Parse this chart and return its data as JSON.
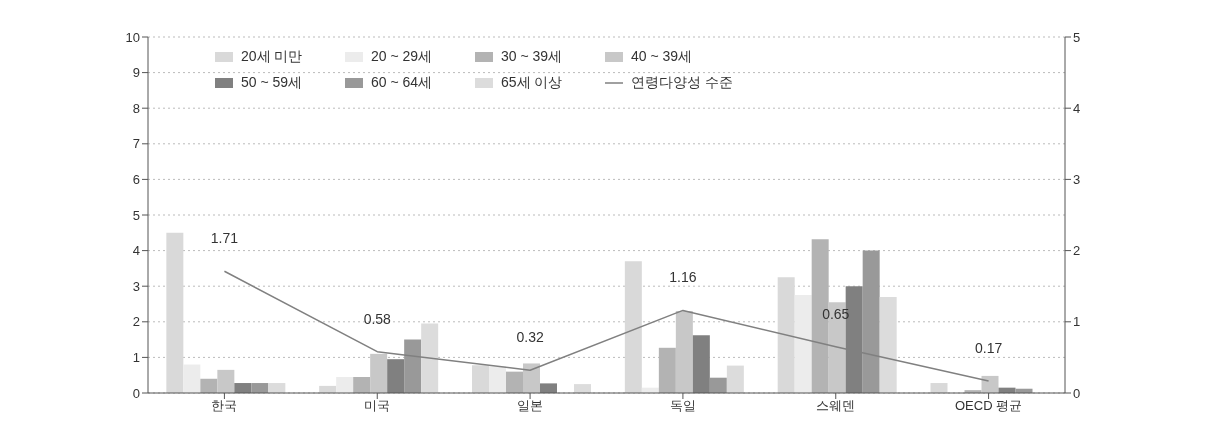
{
  "chart_data": {
    "type": "bar",
    "categories": [
      "한국",
      "미국",
      "일본",
      "독일",
      "스웨덴",
      "OECD 평균"
    ],
    "series": [
      {
        "name": "20세 미만",
        "color": "#d9d9d9",
        "values": [
          4.5,
          0.2,
          0.78,
          3.7,
          3.25,
          0.28
        ]
      },
      {
        "name": "20 ~ 29세",
        "color": "#ececec",
        "values": [
          0.8,
          0.45,
          0.75,
          0.15,
          2.75,
          null
        ]
      },
      {
        "name": "30 ~ 39세",
        "color": "#b3b3b3",
        "values": [
          0.4,
          0.45,
          0.6,
          1.27,
          4.32,
          0.08
        ]
      },
      {
        "name": "40 ~ 39세",
        "color": "#c8c8c8",
        "values": [
          0.65,
          1.1,
          0.83,
          2.3,
          2.55,
          0.48
        ]
      },
      {
        "name": "50 ~ 59세",
        "color": "#808080",
        "values": [
          0.28,
          0.95,
          0.27,
          1.62,
          3.0,
          0.15
        ]
      },
      {
        "name": "60 ~ 64세",
        "color": "#999999",
        "values": [
          0.28,
          1.5,
          null,
          0.43,
          4.0,
          0.12
        ]
      },
      {
        "name": "65세 이상",
        "color": "#dcdcdc",
        "values": [
          0.28,
          1.95,
          0.25,
          0.77,
          2.7,
          null
        ]
      },
      {
        "name": "연령다양성 수준",
        "type": "line",
        "axis": "y2",
        "color": "#808080",
        "values": [
          1.71,
          0.58,
          0.32,
          1.16,
          0.65,
          0.17
        ],
        "value_labels": [
          "1.71",
          "0.58",
          "0.32",
          "1.16",
          "0.65",
          "0.17"
        ]
      }
    ],
    "ylim": [
      0,
      10
    ],
    "yticks": [
      0,
      1,
      2,
      3,
      4,
      5,
      6,
      7,
      8,
      9,
      10
    ],
    "y2lim": [
      0,
      5
    ],
    "y2ticks": [
      0,
      1,
      2,
      3,
      4,
      5
    ],
    "grid": "y",
    "legend": "top left",
    "marker": "none"
  }
}
